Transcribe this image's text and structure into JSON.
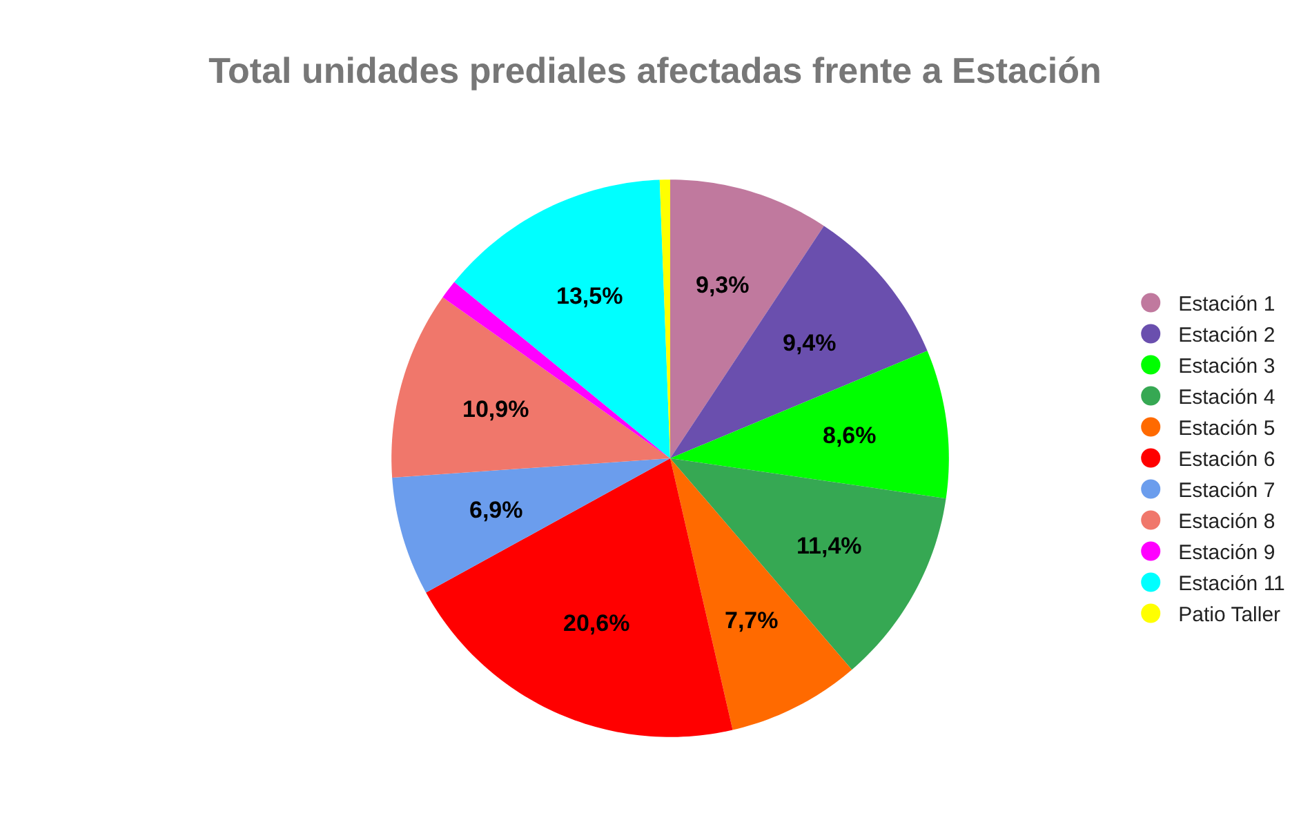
{
  "chart_data": {
    "type": "pie",
    "title": "Total unidades prediales afectadas frente a Estación",
    "categories": [
      "Estación 1",
      "Estación 2",
      "Estación 3",
      "Estación 4",
      "Estación 5",
      "Estación 6",
      "Estación 7",
      "Estación 8",
      "Estación 9",
      "Estación 11",
      "Patio Taller"
    ],
    "values": [
      9.3,
      9.4,
      8.6,
      11.4,
      7.7,
      20.6,
      6.9,
      10.9,
      1.1,
      13.5,
      0.6
    ],
    "value_labels": [
      "9,3%",
      "9,4%",
      "8,6%",
      "11,4%",
      "7,7%",
      "20,6%",
      "6,9%",
      "10,9%",
      null,
      "13,5%",
      null
    ],
    "colors": [
      "#c0799e",
      "#6a4fae",
      "#00ff00",
      "#36a853",
      "#ff6a00",
      "#ff0000",
      "#6b9ded",
      "#f0776b",
      "#ff00ff",
      "#00ffff",
      "#ffff00"
    ],
    "legend": "right"
  }
}
